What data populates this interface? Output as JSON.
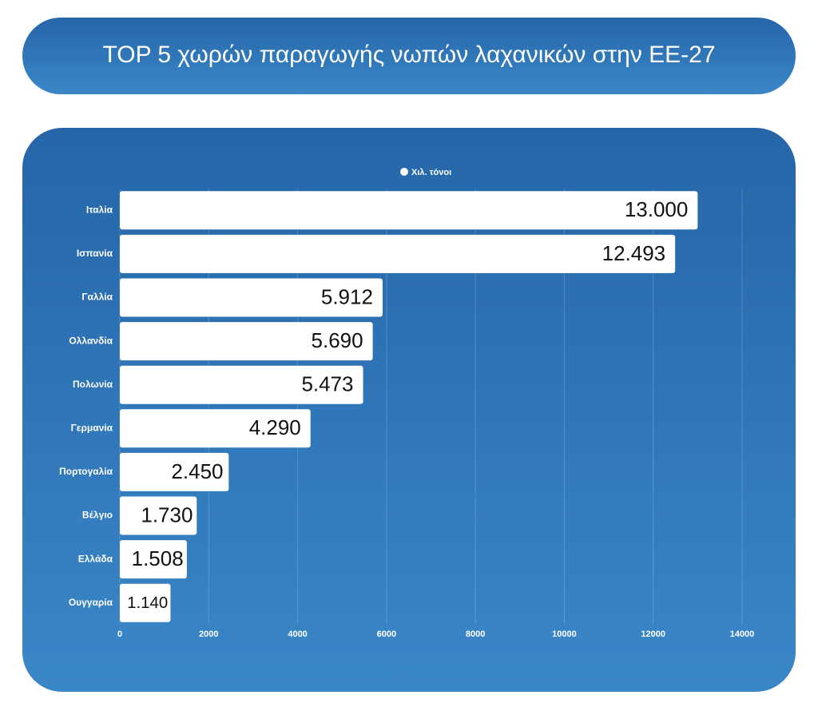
{
  "chart_data": {
    "type": "hbar",
    "title": "TOP 5 χωρών παραγωγής νωπών λαχανικών στην ΕΕ-27",
    "categories": [
      "Ιταλία",
      "Ισπανία",
      "Γαλλία",
      "Ολλανδία",
      "Πολωνία",
      "Γερμανία",
      "Πορτογαλία",
      "Βέλγιο",
      "Ελλάδα",
      "Ουγγαρία"
    ],
    "series": [
      {
        "name": "Χιλ. τόνοι",
        "color": "#ffffff",
        "values": [
          13000,
          12493,
          5912,
          5690,
          5473,
          4290,
          2450,
          1730,
          1508,
          1140
        ],
        "value_labels": [
          "13.000",
          "12.493",
          "5.912",
          "5.690",
          "5.473",
          "4.290",
          "2.450",
          "1.730",
          "1.508",
          "1.140"
        ]
      }
    ],
    "xlim": [
      0,
      14000
    ],
    "xticks": [
      0,
      2000,
      4000,
      6000,
      8000,
      10000,
      12000,
      14000
    ],
    "grid": true,
    "legend": "top"
  }
}
